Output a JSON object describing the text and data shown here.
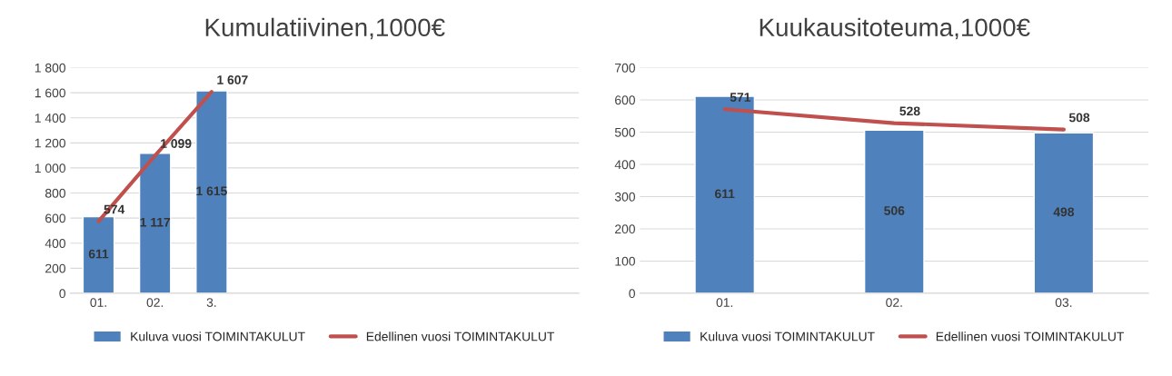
{
  "chart_data": [
    {
      "type": "bar",
      "title": "Kumulatiivinen,1000€",
      "categories": [
        "01.",
        "02.",
        "3.",
        null,
        null,
        null,
        null,
        null,
        null
      ],
      "ylim": [
        0,
        1800
      ],
      "yticks": [
        0,
        200,
        400,
        600,
        800,
        {
          "value": 1000,
          "label": "1 000"
        },
        {
          "value": 1200,
          "label": "1 200"
        },
        {
          "value": 1400,
          "label": "1 400"
        },
        {
          "value": 1600,
          "label": "1 600"
        },
        {
          "value": 1800,
          "label": "1 800"
        }
      ],
      "grid": "y",
      "legend": "bottom",
      "series": [
        {
          "name": "Kuluva vuosi TOIMINTAKULUT",
          "color": "#4f81bd",
          "values": [
            611,
            1117,
            1615,
            null,
            null,
            null,
            null,
            null,
            null
          ],
          "value_labels": [
            "611",
            "1 117",
            "1 615",
            null,
            null,
            null,
            null,
            null,
            null
          ]
        },
        {
          "name": "Edellinen vuosi TOIMINTAKULUT",
          "type": "line",
          "color": "#c0504d",
          "values": [
            574,
            1099,
            1607,
            null,
            null,
            null,
            null,
            null,
            null
          ],
          "value_labels": [
            "574",
            "1 099",
            "1 607",
            null,
            null,
            null,
            null,
            null,
            null
          ]
        }
      ]
    },
    {
      "type": "bar",
      "title": "Kuukausitoteuma,1000€",
      "categories": [
        "01.",
        "02.",
        "03."
      ],
      "ylim": [
        0,
        700
      ],
      "yticks": [
        0,
        100,
        200,
        300,
        400,
        500,
        600,
        700
      ],
      "grid": "y",
      "legend": "bottom",
      "series": [
        {
          "name": "Kuluva vuosi TOIMINTAKULUT",
          "color": "#4f81bd",
          "values": [
            611,
            506,
            498
          ],
          "value_labels": [
            "611",
            "506",
            "498"
          ]
        },
        {
          "name": "Edellinen vuosi TOIMINTAKULUT",
          "type": "line",
          "color": "#c0504d",
          "values": [
            571,
            528,
            508
          ],
          "value_labels": [
            "571",
            "528",
            "508"
          ]
        }
      ]
    }
  ]
}
